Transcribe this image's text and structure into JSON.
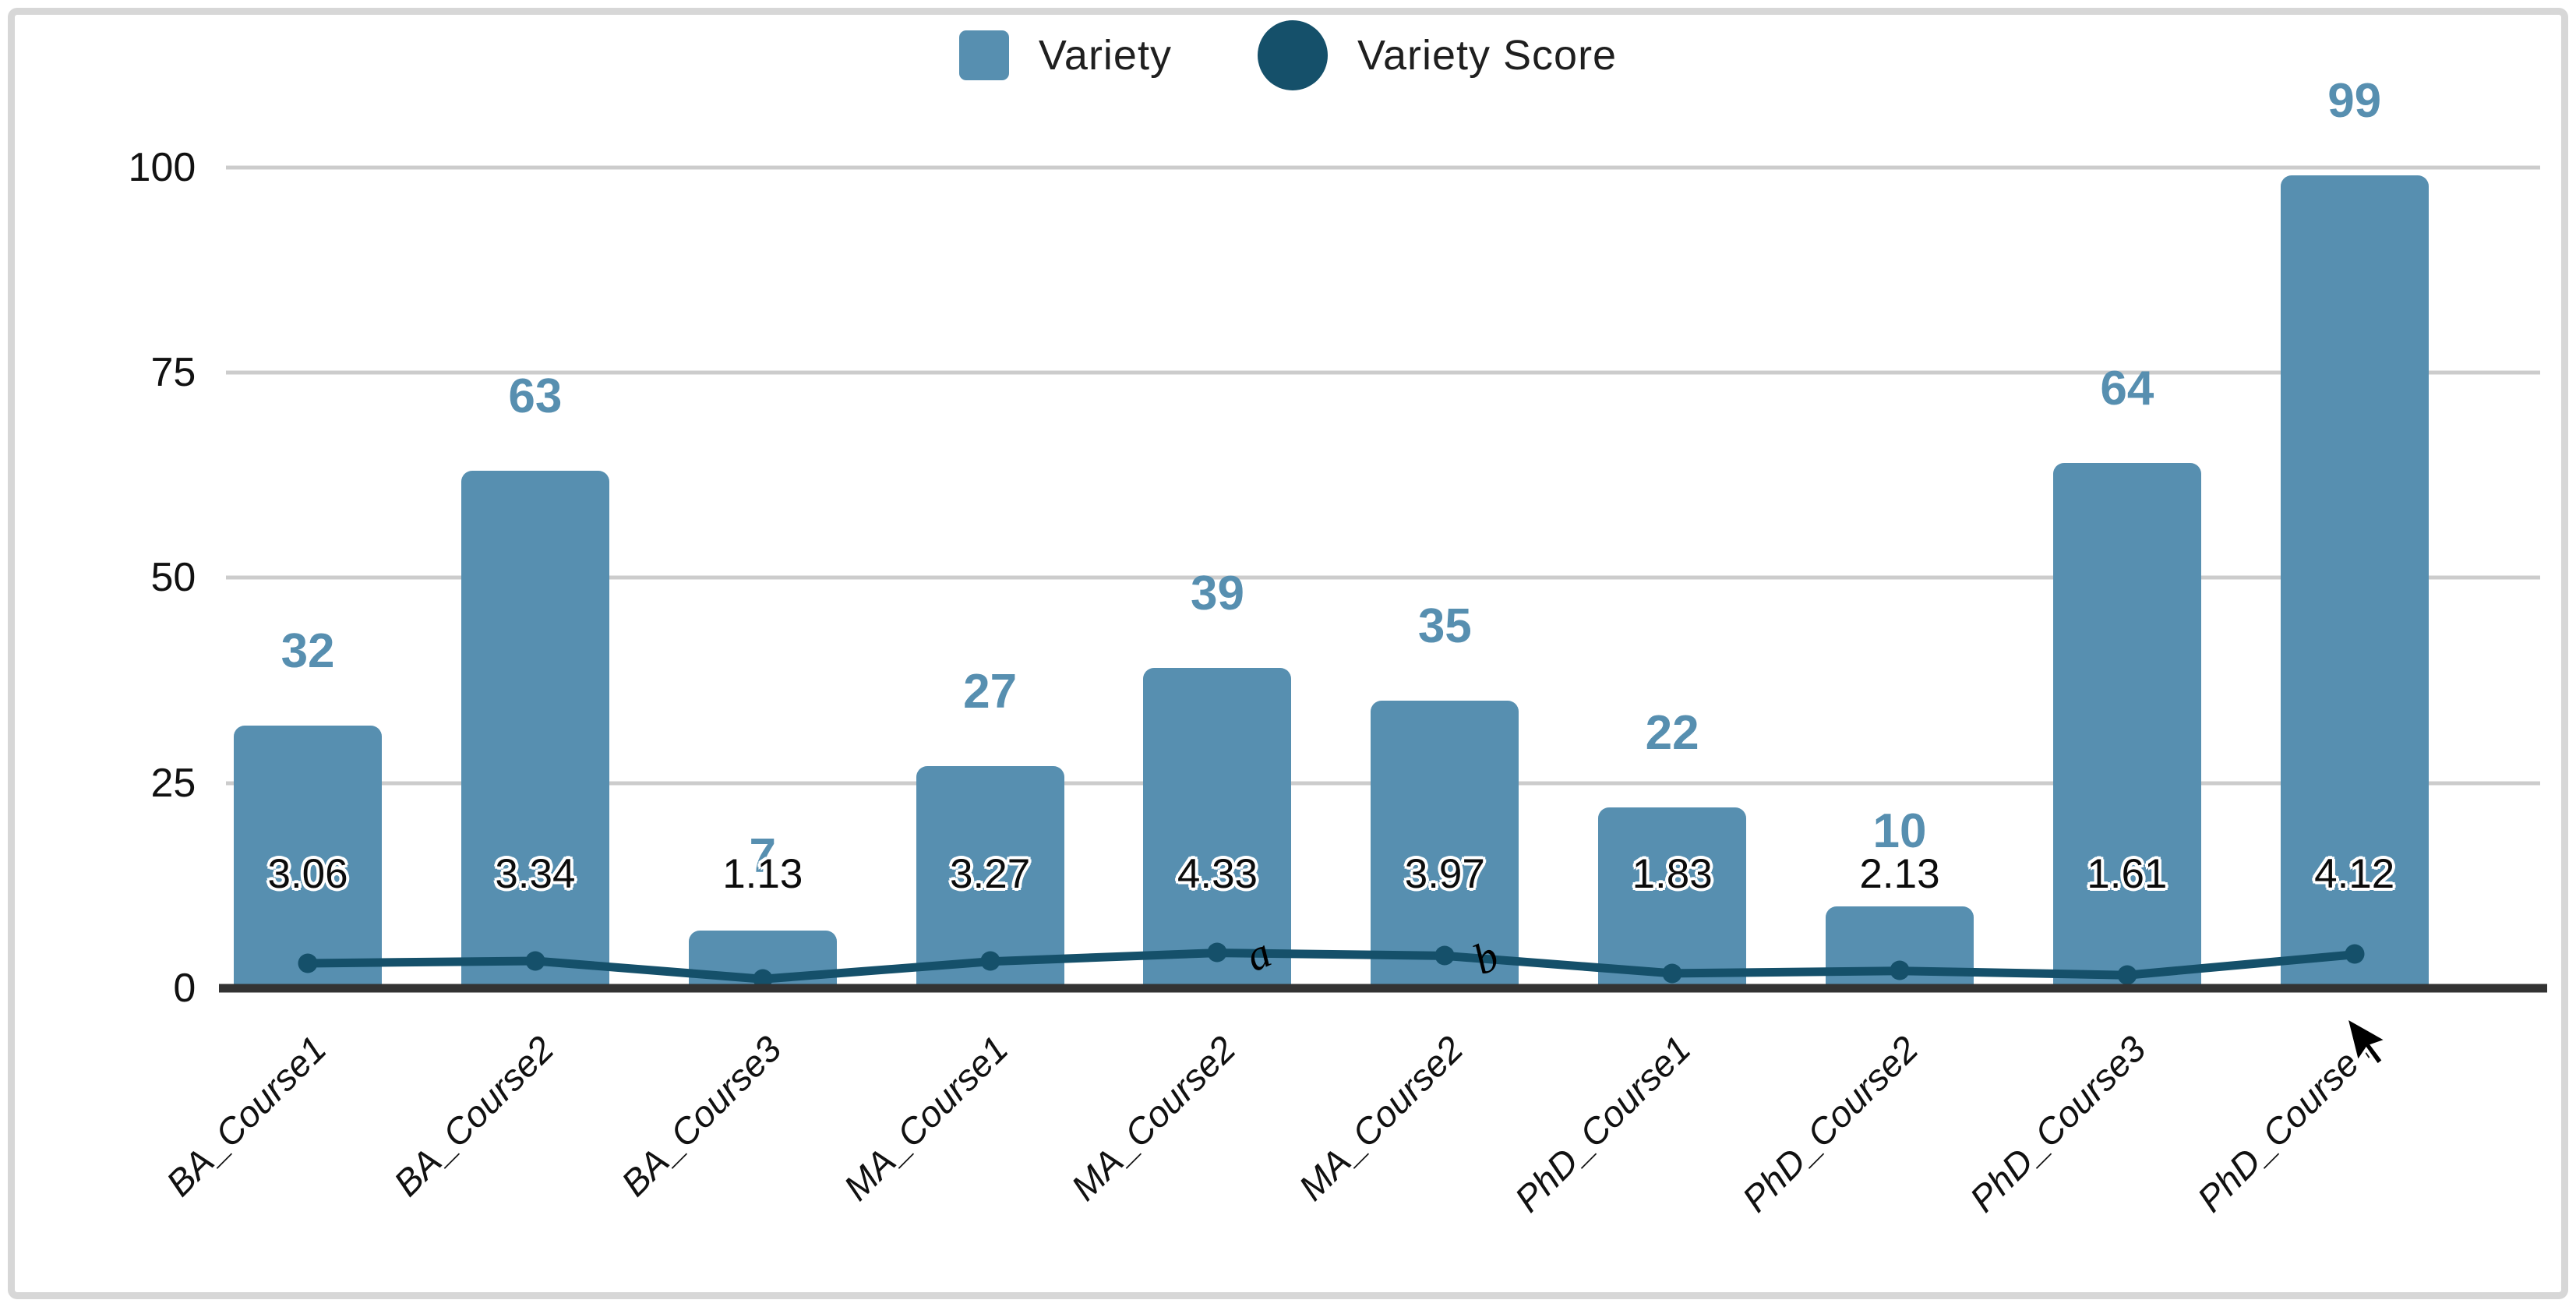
{
  "chart_data": {
    "type": "bar",
    "subtype": "combo-bar-line",
    "title": "",
    "categories": [
      "BA_Course1",
      "BA_Course2",
      "BA_Course3",
      "MA_Course1",
      "MA_Course2",
      "MA_Course2",
      "PhD_Course1",
      "PhD_Course2",
      "PhD_Course3",
      "PhD_Course4"
    ],
    "series": [
      {
        "name": "Variety",
        "type": "bar",
        "color": "#578fb0",
        "values": [
          32,
          63,
          7,
          27,
          39,
          35,
          22,
          10,
          64,
          99
        ]
      },
      {
        "name": "Variety Score",
        "type": "line",
        "color": "#15506a",
        "values": [
          3.06,
          3.34,
          1.13,
          3.27,
          4.33,
          3.97,
          1.83,
          2.13,
          1.61,
          4.12
        ]
      }
    ],
    "y_axis": {
      "min": 0,
      "max": 100,
      "ticks": [
        0,
        25,
        50,
        75,
        100
      ]
    },
    "grid": true,
    "legend_position": "top-center",
    "annotations": [
      {
        "text": "a",
        "category_index": 4
      },
      {
        "text": "b",
        "category_index": 5
      }
    ]
  },
  "colors": {
    "bar": "#578fb0",
    "line": "#15506a",
    "gridline": "#cccccc",
    "axis": "#333333",
    "frame_border": "#d7d7d7",
    "bar_label": "#578fb0",
    "score_label": "#0c0c0c",
    "background": "#ffffff"
  },
  "cursor": {
    "visible": true
  }
}
